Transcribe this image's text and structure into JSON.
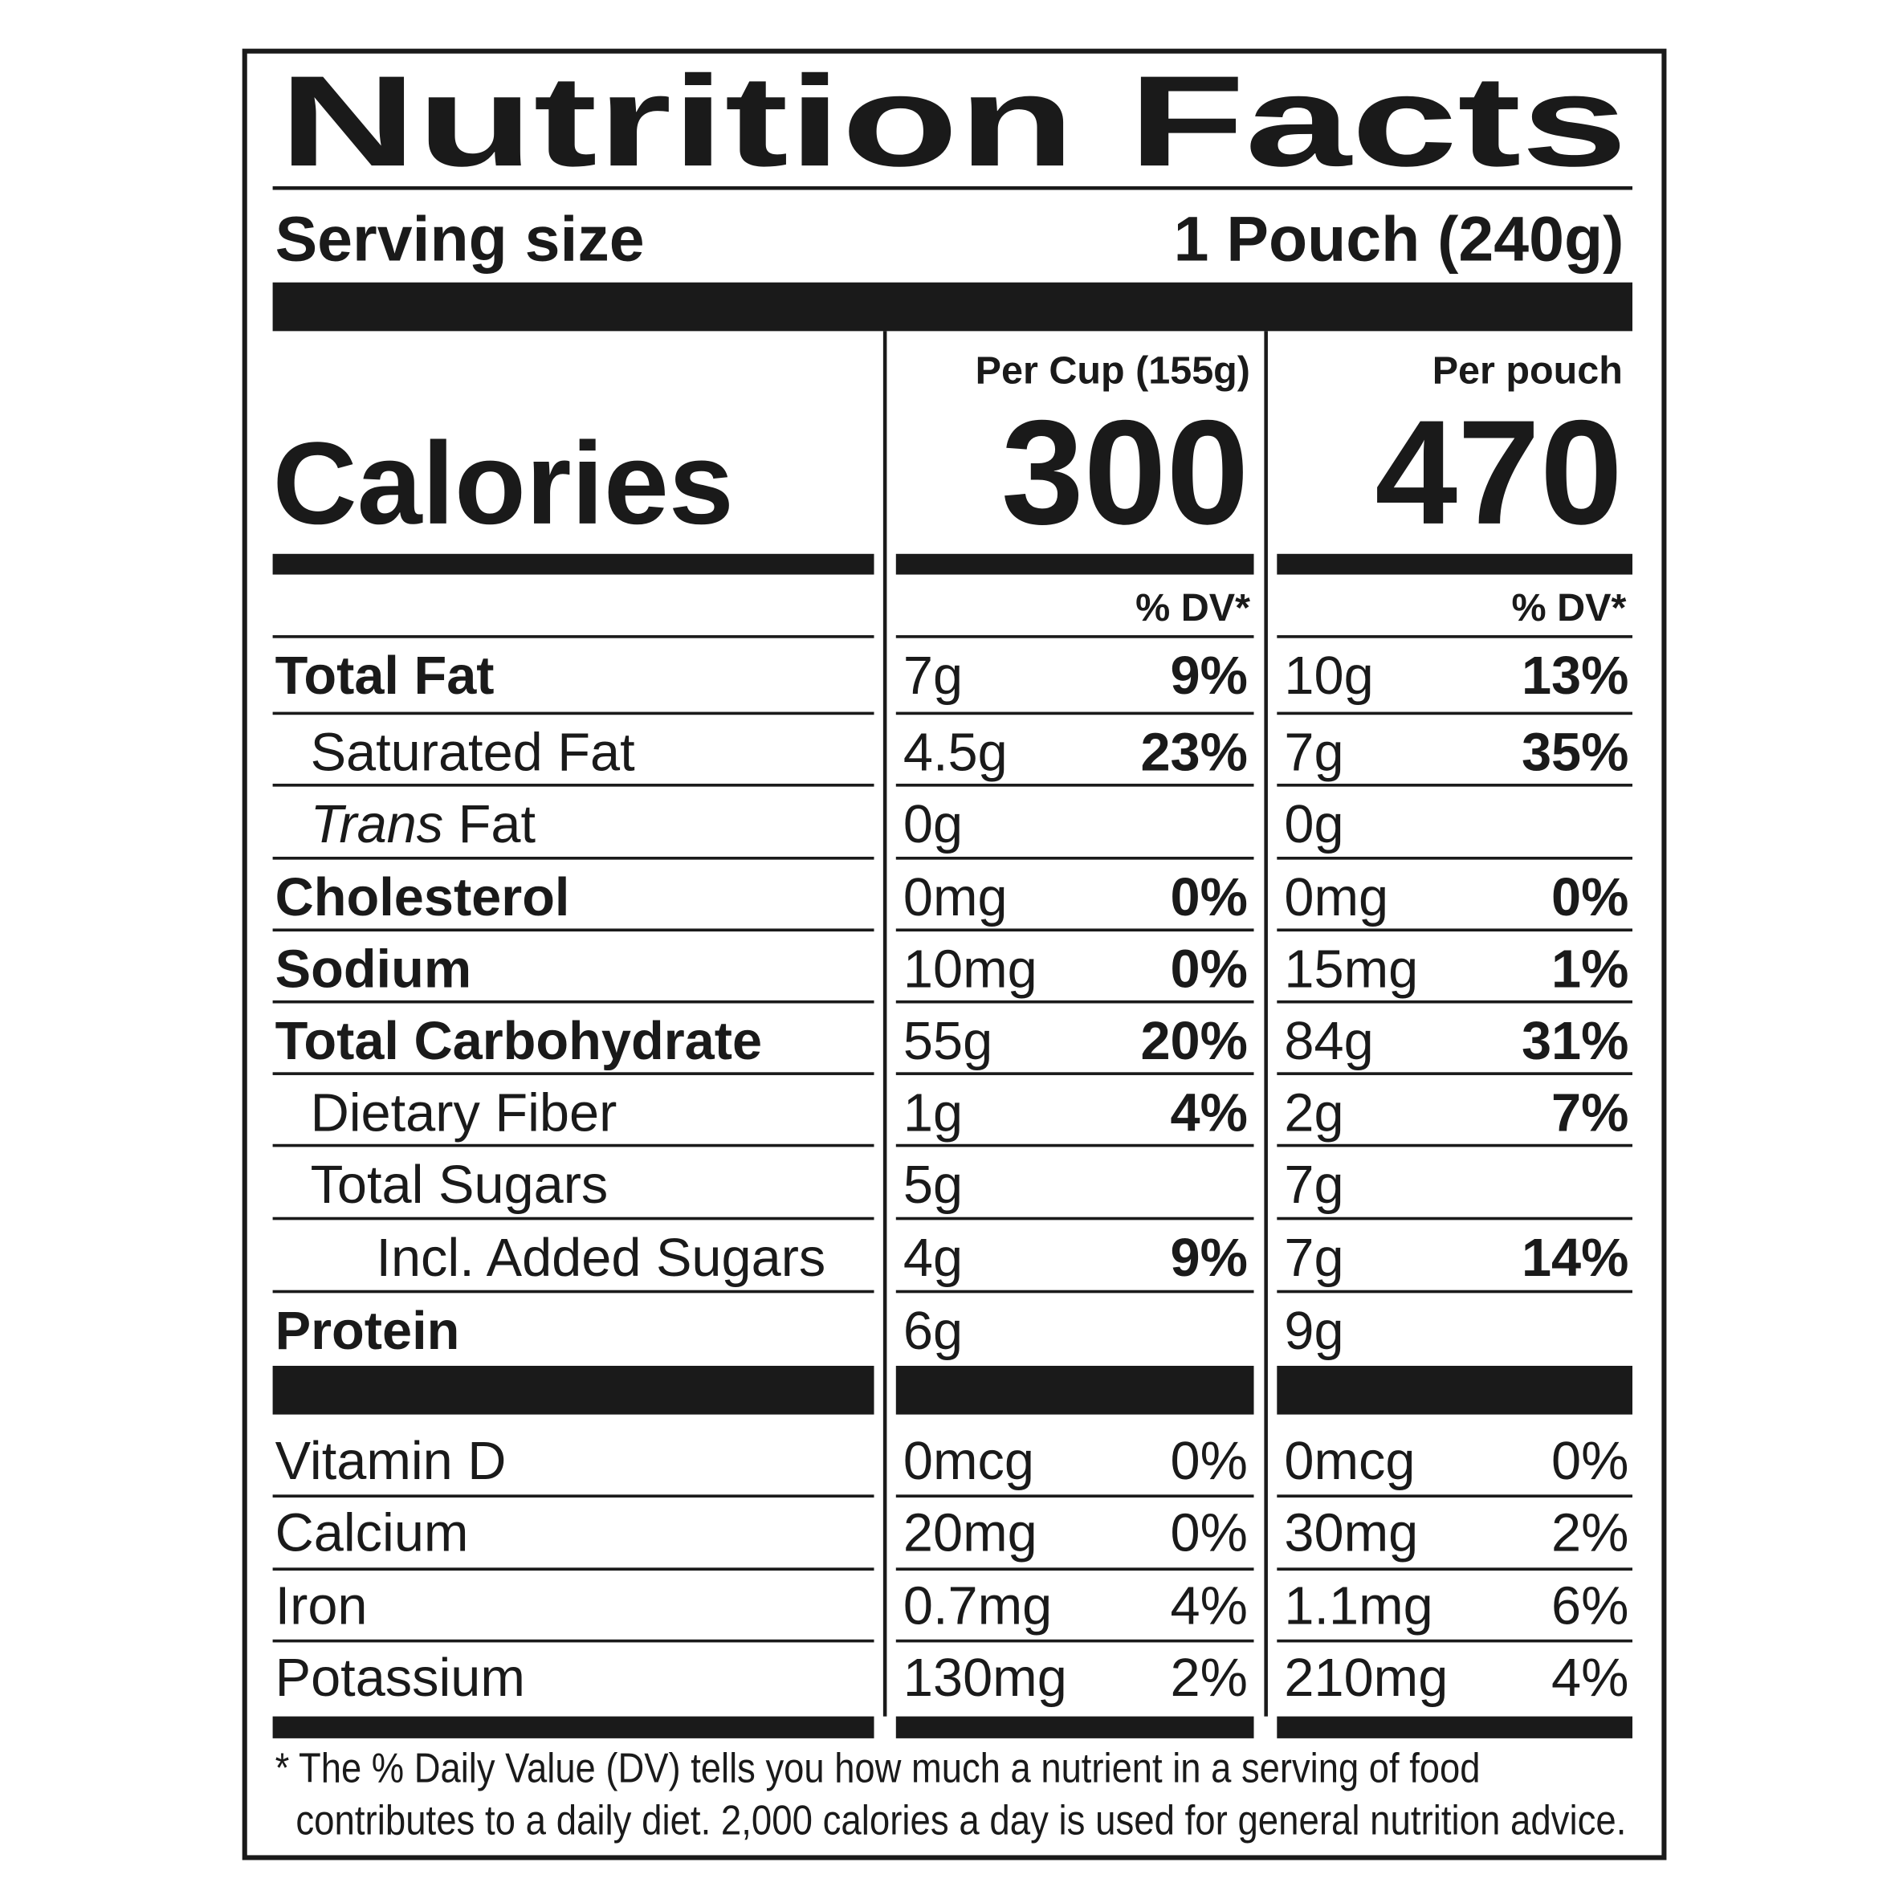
{
  "header": {
    "title": "Nutrition Facts",
    "serving_label": "Serving size",
    "serving_value": "1 Pouch (240g)"
  },
  "calories": {
    "label": "Calories",
    "columns": [
      {
        "heading": "Per Cup (155g)",
        "value": "300"
      },
      {
        "heading": "Per pouch",
        "value": "470"
      }
    ]
  },
  "dv_heading": "% DV*",
  "nutrients": [
    {
      "name": "Total Fat",
      "cup": [
        "7g",
        "9%"
      ],
      "pouch": [
        "10g",
        "13%"
      ]
    },
    {
      "name": "Saturated Fat",
      "cup": [
        "4.5g",
        "23%"
      ],
      "pouch": [
        "7g",
        "35%"
      ]
    },
    {
      "name": [
        "Trans",
        " Fat"
      ],
      "cup": [
        "0g"
      ],
      "pouch": [
        "0g"
      ]
    },
    {
      "name": "Cholesterol",
      "cup": [
        "0mg",
        "0%"
      ],
      "pouch": [
        "0mg",
        "0%"
      ]
    },
    {
      "name": "Sodium",
      "cup": [
        "10mg",
        "0%"
      ],
      "pouch": [
        "15mg",
        "1%"
      ]
    },
    {
      "name": "Total Carbohydrate",
      "cup": [
        "55g",
        "20%"
      ],
      "pouch": [
        "84g",
        "31%"
      ]
    },
    {
      "name": "Dietary Fiber",
      "cup": [
        "1g",
        "4%"
      ],
      "pouch": [
        "2g",
        "7%"
      ]
    },
    {
      "name": "Total Sugars",
      "cup": [
        "5g"
      ],
      "pouch": [
        "7g"
      ]
    },
    {
      "name": "Incl. Added Sugars",
      "cup": [
        "4g",
        "9%"
      ],
      "pouch": [
        "7g",
        "14%"
      ]
    },
    {
      "name": "Protein",
      "cup": [
        "6g"
      ],
      "pouch": [
        "9g"
      ]
    }
  ],
  "vitamins": [
    {
      "name": "Vitamin D",
      "cup": [
        "0mcg",
        "0%"
      ],
      "pouch": [
        "0mcg",
        "0%"
      ]
    },
    {
      "name": "Calcium",
      "cup": [
        "20mg",
        "0%"
      ],
      "pouch": [
        "30mg",
        "2%"
      ]
    },
    {
      "name": "Iron",
      "cup": [
        "0.7mg",
        "4%"
      ],
      "pouch": [
        "1.1mg",
        "6%"
      ]
    },
    {
      "name": "Potassium",
      "cup": [
        "130mg",
        "2%"
      ],
      "pouch": [
        "210mg",
        "4%"
      ]
    }
  ],
  "footnote": [
    "* The % Daily Value (DV) tells you how much a nutrient in a serving of food",
    "contributes to a daily diet. 2,000 calories a day is used for general nutrition advice."
  ]
}
